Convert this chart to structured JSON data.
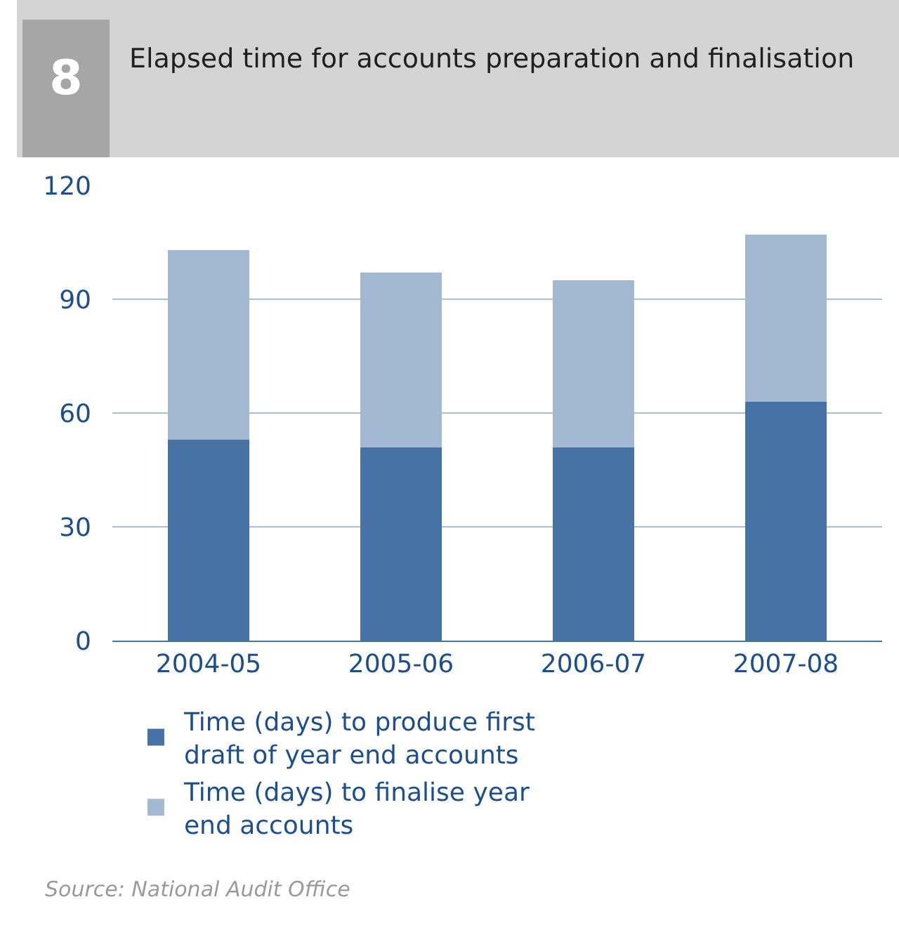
{
  "chart_data": {
    "type": "bar",
    "title": "Elapsed time for accounts preparation and finalisation",
    "annotations": [
      "8",
      "Source: National Audit Office"
    ],
    "categories": [
      "2004-05",
      "2005-06",
      "2006-07",
      "2007-08"
    ],
    "series": [
      {
        "name": "Time (days) to produce first draft of year end accounts",
        "color": "#4672a5",
        "values": [
          53,
          51,
          51,
          63
        ]
      },
      {
        "name": "Time (days) to finalise year end accounts",
        "color": "#a3b9d2",
        "values": [
          50,
          46,
          44,
          44
        ]
      }
    ],
    "stacked": true,
    "ylim": [
      0,
      120
    ],
    "yticks": [
      0,
      30,
      60,
      90,
      120
    ],
    "grid": "y",
    "legend": "bottom"
  }
}
